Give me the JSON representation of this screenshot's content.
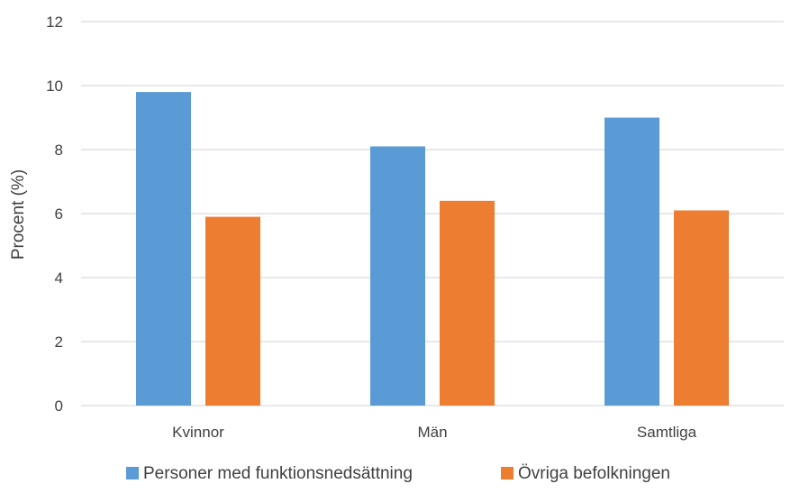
{
  "chart_data": {
    "type": "bar",
    "title": "",
    "xlabel": "",
    "ylabel": "Procent (%)",
    "ylim": [
      0,
      12
    ],
    "yticks": [
      0,
      2,
      4,
      6,
      8,
      10,
      12
    ],
    "grid": true,
    "legend_position": "bottom",
    "categories": [
      "Kvinnor",
      "Män",
      "Samtliga"
    ],
    "series": [
      {
        "name": "Personer med funktionsnedsättning",
        "color": "#5B9BD5",
        "values": [
          9.8,
          8.1,
          9.0
        ]
      },
      {
        "name": "Övriga befolkningen",
        "color": "#ED7D31",
        "values": [
          5.9,
          6.4,
          6.1
        ]
      }
    ]
  }
}
